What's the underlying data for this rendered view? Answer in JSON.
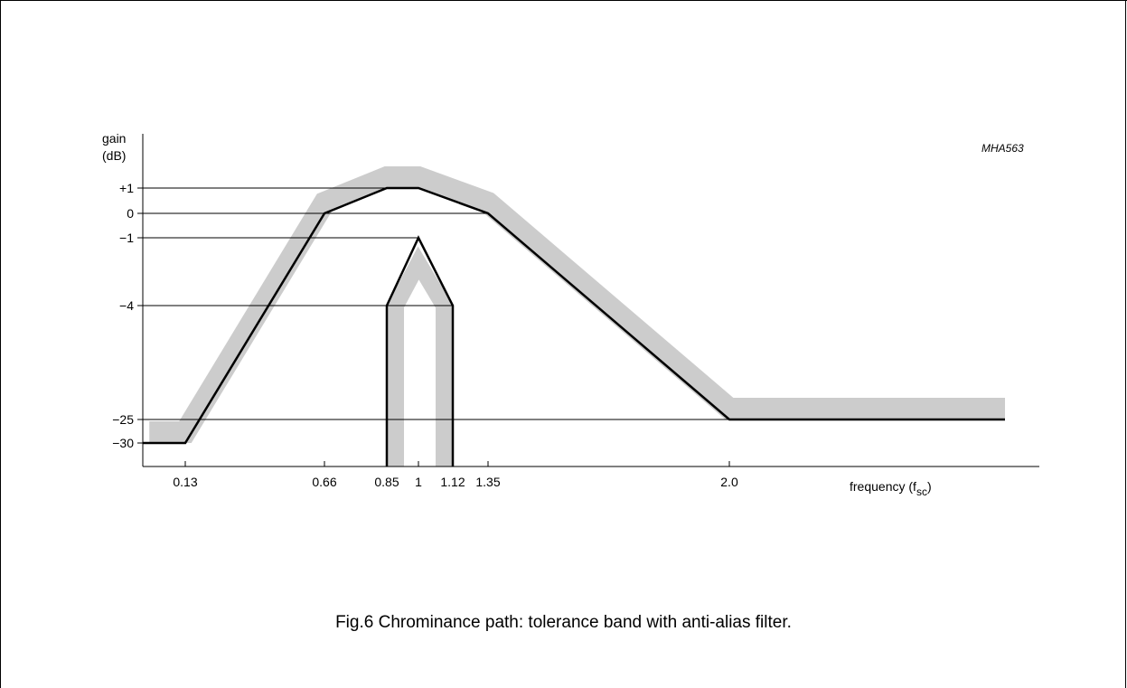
{
  "figure": {
    "code": "MHA563",
    "caption": "Fig.6  Chrominance path: tolerance band with anti-alias filter."
  },
  "chart_data": {
    "type": "line",
    "ylabel_line1": "gain",
    "ylabel_line2": "(dB)",
    "xlabel_main": "frequency (f",
    "xlabel_sub": "sc",
    "xlabel_close": ")",
    "x_ticks": [
      {
        "value": 0.13,
        "label": "0.13"
      },
      {
        "value": 0.66,
        "label": "0.66"
      },
      {
        "value": 0.85,
        "label": "0.85"
      },
      {
        "value": 1,
        "label": "1"
      },
      {
        "value": 1.12,
        "label": "1.12"
      },
      {
        "value": 1.35,
        "label": "1.35"
      },
      {
        "value": 2.0,
        "label": "2.0"
      }
    ],
    "y_ticks": [
      {
        "value": 1,
        "label": "+1"
      },
      {
        "value": 0,
        "label": "0"
      },
      {
        "value": -1,
        "label": "−1"
      },
      {
        "value": -4,
        "label": "−4"
      },
      {
        "value": -25,
        "label": "−25"
      },
      {
        "value": -30,
        "label": "−30"
      }
    ],
    "series": [
      {
        "role": "chrominance-response",
        "points": [
          [
            0,
            -30
          ],
          [
            0.13,
            -30
          ],
          [
            0.66,
            0
          ],
          [
            0.85,
            1
          ],
          [
            1,
            1
          ],
          [
            1.35,
            0
          ],
          [
            2.0,
            -25
          ],
          [
            3.0,
            -25
          ]
        ]
      },
      {
        "role": "anti-alias-filter",
        "points": [
          [
            0.85,
            "bottom"
          ],
          [
            0.85,
            -4
          ],
          [
            1,
            -1
          ],
          [
            1.12,
            -4
          ],
          [
            1.12,
            "bottom"
          ]
        ]
      }
    ],
    "tolerance_band_color": "#cccccc",
    "line_color": "#000000"
  }
}
